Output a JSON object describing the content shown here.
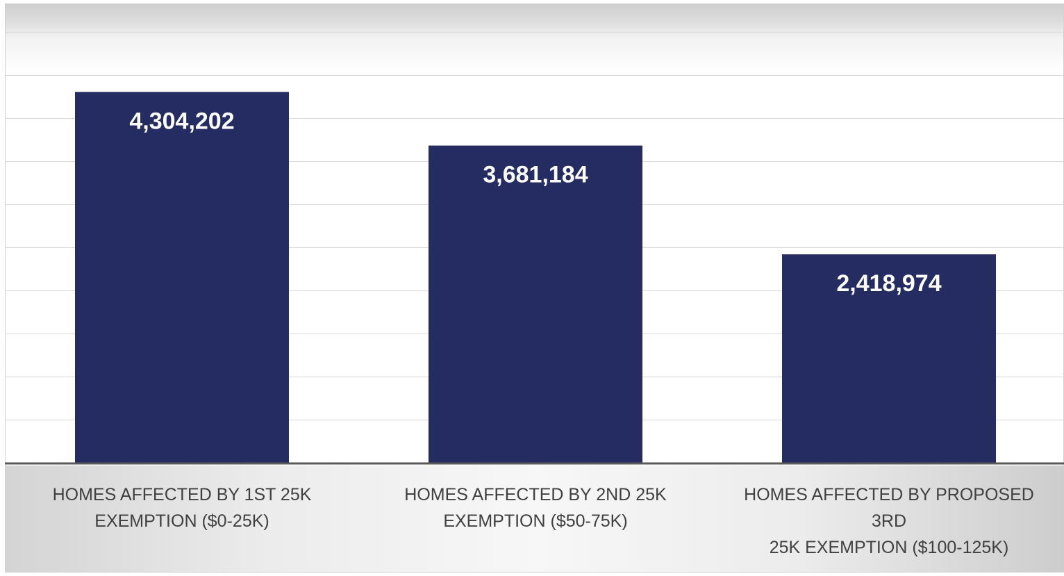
{
  "chart_data": {
    "type": "bar",
    "title": "",
    "xlabel": "",
    "ylabel": "",
    "categories": [
      "HOMES AFFECTED BY 1ST 25K\nEXEMPTION ($0-25K)",
      "HOMES AFFECTED BY 2ND 25K\nEXEMPTION ($50-75K)",
      "HOMES AFFECTED BY PROPOSED 3RD\n25K EXEMPTION ($100-125K)"
    ],
    "values": [
      4304202,
      3681184,
      2418974
    ],
    "data_labels": [
      "4,304,202",
      "3,681,184",
      "2,418,974"
    ],
    "ylim": [
      0,
      5000000
    ],
    "grid": true,
    "legend": "none",
    "colors": {
      "bar": "#242c62",
      "bar_label": "#ffffff",
      "gridline": "#d9d9d9",
      "axis": "#595959",
      "category_label": "#404040"
    }
  }
}
